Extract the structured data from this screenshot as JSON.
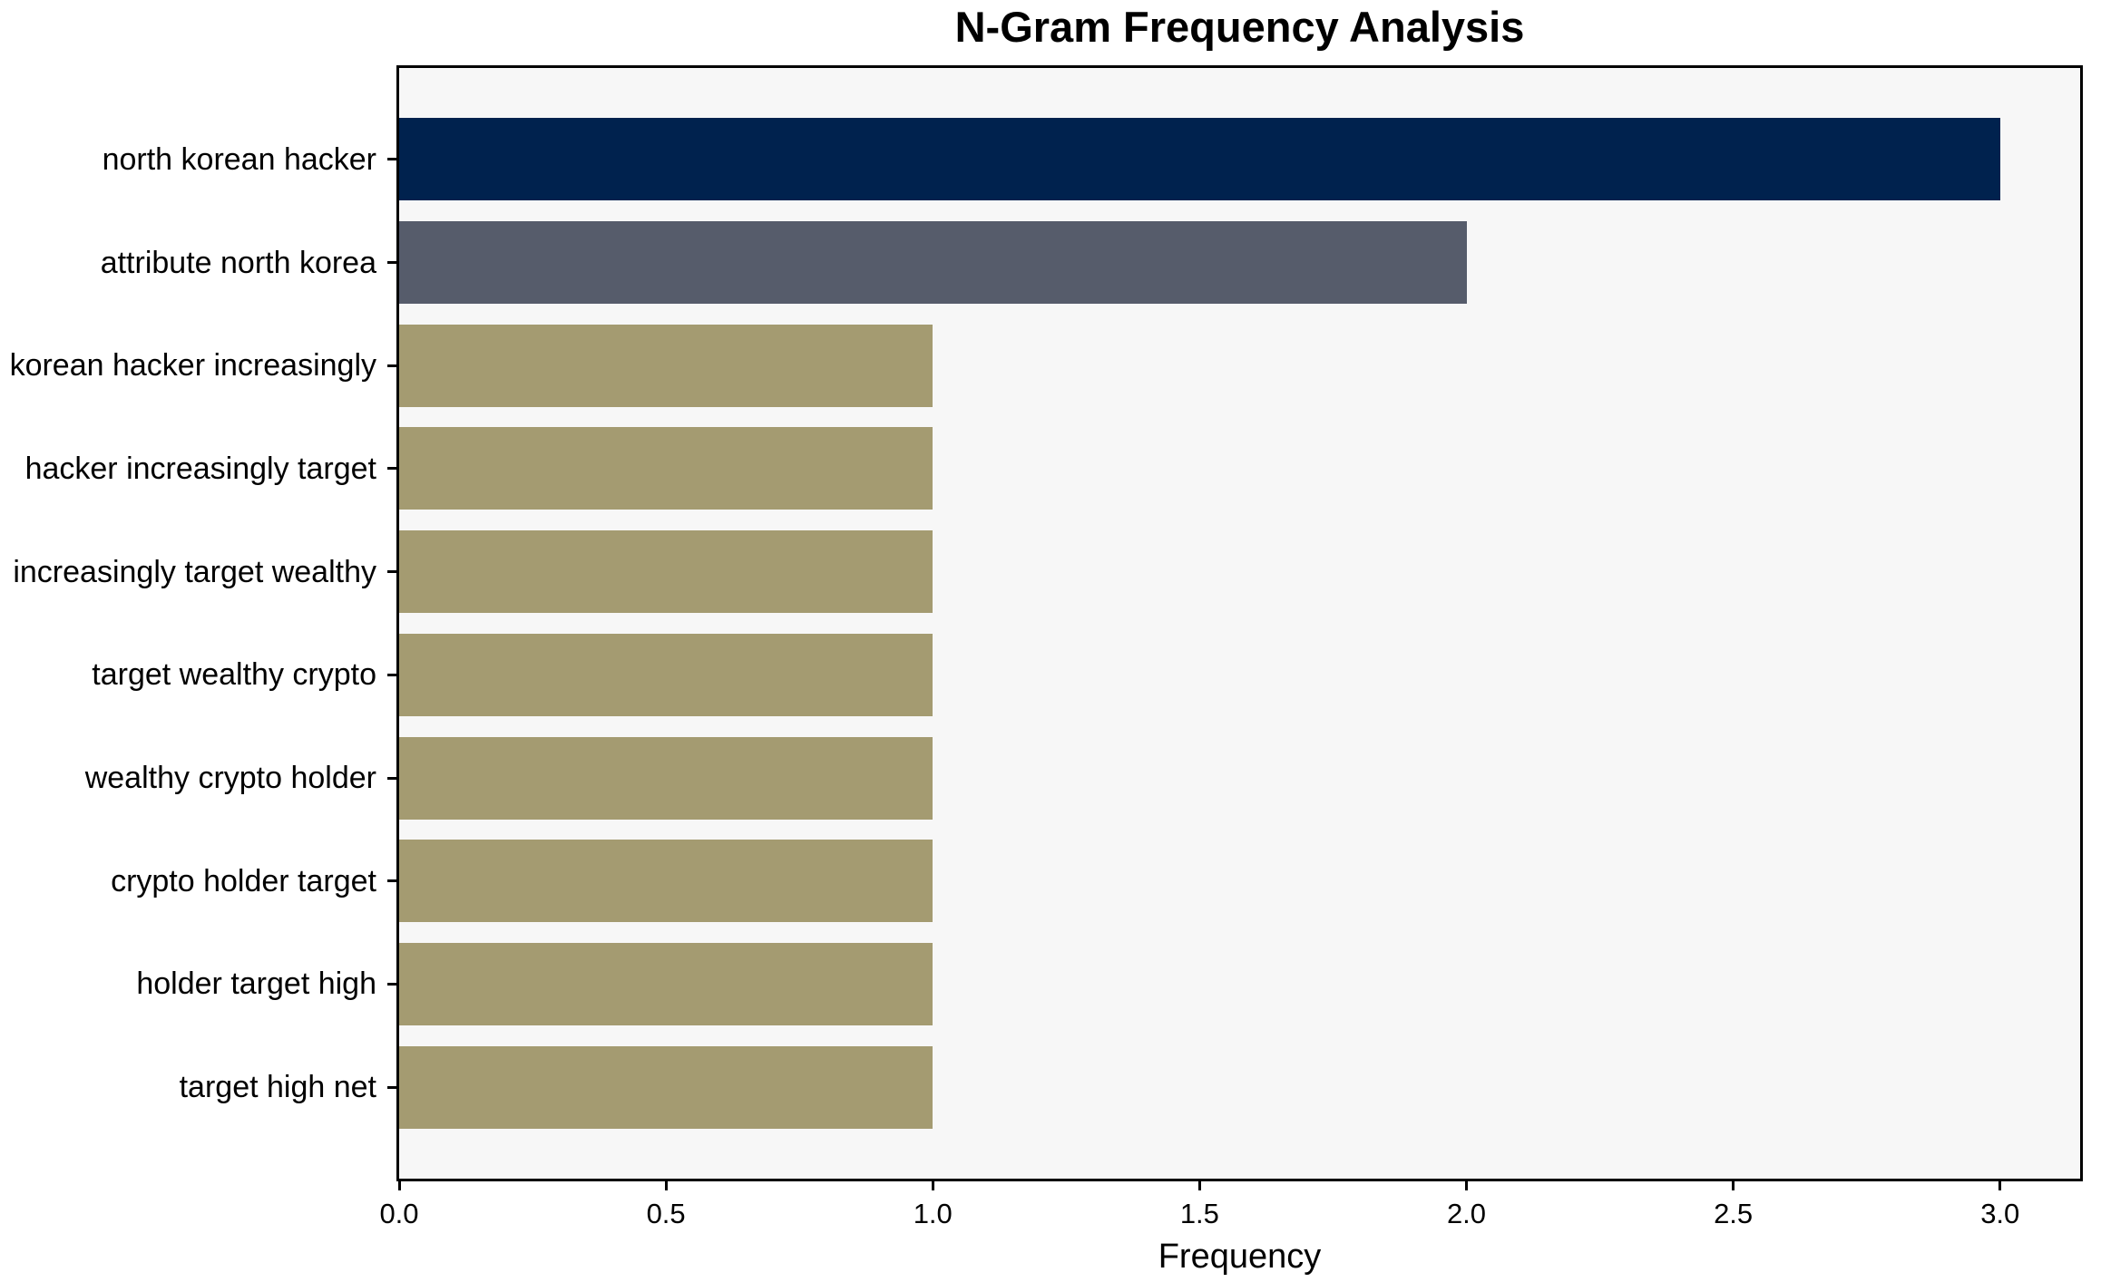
{
  "chart_data": {
    "type": "bar",
    "orientation": "horizontal",
    "title": "N-Gram Frequency Analysis",
    "xlabel": "Frequency",
    "ylabel": "",
    "categories": [
      "north korean hacker",
      "attribute north korea",
      "korean hacker increasingly",
      "hacker increasingly target",
      "increasingly target wealthy",
      "target wealthy crypto",
      "wealthy crypto holder",
      "crypto holder target",
      "holder target high",
      "target high net"
    ],
    "values": [
      3,
      2,
      1,
      1,
      1,
      1,
      1,
      1,
      1,
      1
    ],
    "bar_colors": [
      "#00224e",
      "#565c6b",
      "#a49b71",
      "#a49b71",
      "#a49b71",
      "#a49b71",
      "#a49b71",
      "#a49b71",
      "#a49b71",
      "#a49b71"
    ],
    "xlim": [
      0,
      3.15
    ],
    "xticks": [
      0.0,
      0.5,
      1.0,
      1.5,
      2.0,
      2.5,
      3.0
    ],
    "xtick_labels": [
      "0.0",
      "0.5",
      "1.0",
      "1.5",
      "2.0",
      "2.5",
      "3.0"
    ],
    "grid": false,
    "legend": null,
    "plot_background": "#f7f7f7",
    "figure_background": "#ffffff",
    "spine_color": "#000000"
  }
}
